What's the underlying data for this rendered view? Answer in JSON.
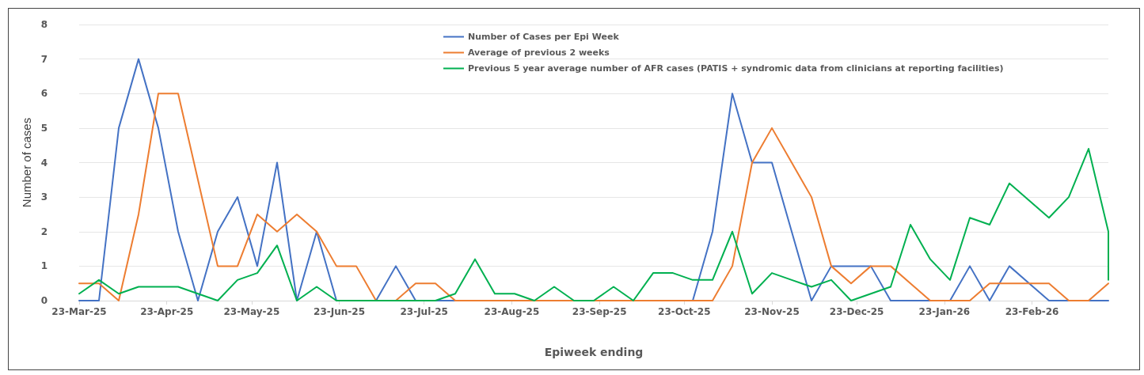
{
  "chart_data": {
    "type": "line",
    "xlabel": "Epiweek ending",
    "ylabel": "Number of cases",
    "x": [
      "2025-03-23",
      "2025-03-30",
      "2025-04-06",
      "2025-04-13",
      "2025-04-20",
      "2025-04-27",
      "2025-05-04",
      "2025-05-11",
      "2025-05-18",
      "2025-05-25",
      "2025-06-01",
      "2025-06-08",
      "2025-06-15",
      "2025-06-22",
      "2025-06-29",
      "2025-07-06",
      "2025-07-13",
      "2025-07-20",
      "2025-07-27",
      "2025-08-03",
      "2025-08-10",
      "2025-08-17",
      "2025-08-24",
      "2025-08-31",
      "2025-09-07",
      "2025-09-14",
      "2025-09-21",
      "2025-09-28",
      "2025-10-05",
      "2025-10-12",
      "2025-10-19",
      "2025-10-26",
      "2025-11-02",
      "2025-11-09",
      "2025-11-16",
      "2025-11-23",
      "2025-11-30",
      "2025-12-07",
      "2025-12-14",
      "2025-12-21",
      "2025-12-28",
      "2026-01-04",
      "2026-01-11",
      "2026-01-18",
      "2026-01-25",
      "2026-02-01",
      "2026-02-08",
      "2026-02-15",
      "2026-02-22",
      "2026-03-01",
      "2026-03-08",
      "2026-03-15",
      "2026-03-22"
    ],
    "series": [
      {
        "name": "Number of Cases per Epi Week",
        "color": "#4472c4",
        "values": [
          0,
          0,
          5,
          7,
          5,
          2,
          0,
          2,
          3,
          1,
          4,
          0,
          2,
          0,
          0,
          0,
          1,
          0,
          0,
          0,
          0,
          0,
          0,
          0,
          0,
          0,
          0,
          0,
          0,
          0,
          0,
          0,
          2,
          6,
          4,
          4,
          2,
          0,
          1,
          1,
          1,
          0,
          0,
          0,
          0,
          1,
          0,
          1,
          0.5,
          0,
          0,
          0,
          0
        ]
      },
      {
        "name": "Average of previous 2 weeks",
        "color": "#ed7d31",
        "values": [
          0.5,
          0.5,
          0,
          2.5,
          6,
          6,
          3.5,
          1,
          1,
          2.5,
          2,
          2.5,
          2,
          1,
          1,
          0,
          0,
          0.5,
          0.5,
          0,
          0,
          0,
          0,
          0,
          0,
          0,
          0,
          0,
          0,
          0,
          0,
          0,
          0,
          1,
          4,
          5,
          4,
          3,
          1,
          0.5,
          1,
          1,
          0.5,
          0,
          0,
          0,
          0.5,
          0.5,
          0.5,
          0.5,
          0,
          0,
          0.5
        ]
      },
      {
        "name": "Previous 5 year average number of AFR cases (PATIS + syndromic data from clinicians at reporting facilities)",
        "color": "#00b050",
        "x": [
          "2025-03-23",
          "2025-03-30",
          "2025-04-06",
          "2025-04-13",
          "2025-04-20",
          "2025-04-27",
          "2025-05-04",
          "2025-05-11",
          "2025-05-18",
          "2025-05-25",
          "2025-06-01",
          "2025-06-08",
          "2025-06-15",
          "2025-06-22",
          "2025-06-29",
          "2025-07-06",
          "2025-07-13",
          "2025-07-20",
          "2025-07-27",
          "2025-08-03",
          "2025-08-10",
          "2025-08-17",
          "2025-08-24",
          "2025-08-31",
          "2025-09-07",
          "2025-09-14",
          "2025-09-21",
          "2025-09-28",
          "2025-10-05",
          "2025-10-12",
          "2025-10-19",
          "2025-10-26",
          "2025-11-02",
          "2025-11-09",
          "2025-11-16",
          "2025-11-23",
          "2025-11-30",
          "2025-12-07",
          "2025-12-14",
          "2025-12-21",
          "2025-12-28",
          "2026-01-04",
          "2026-01-11",
          "2026-01-18",
          "2026-01-25",
          "2026-02-01",
          "2026-02-08",
          "2026-02-15",
          "2026-02-22",
          "2026-03-01",
          "2026-03-08",
          "2026-03-15",
          "2026-03-22",
          "2026-03-22"
        ],
        "values": [
          0.2,
          0.6,
          0.2,
          0.4,
          0.4,
          0.4,
          0.2,
          0,
          0.6,
          0.8,
          1.6,
          0,
          0.4,
          0,
          0,
          0,
          0,
          0,
          0,
          0.2,
          1.2,
          0.2,
          0.2,
          0,
          0.4,
          0,
          0,
          0.4,
          0,
          0.8,
          0.8,
          0.6,
          0.6,
          2,
          0.2,
          0.8,
          0.6,
          0.4,
          0.6,
          0,
          0.2,
          0.4,
          2.2,
          1.2,
          0.6,
          2.4,
          2.2,
          3.4,
          2.9,
          2.4,
          3,
          4.4,
          2,
          0.6
        ]
      }
    ],
    "xlim": [
      "2025-03-23",
      "2026-03-22"
    ],
    "xticks": [
      {
        "value": "2025-03-23",
        "label": "23-Mar-25"
      },
      {
        "value": "2025-04-23",
        "label": "23-Apr-25"
      },
      {
        "value": "2025-05-23",
        "label": "23-May-25"
      },
      {
        "value": "2025-06-23",
        "label": "23-Jun-25"
      },
      {
        "value": "2025-07-23",
        "label": "23-Jul-25"
      },
      {
        "value": "2025-08-23",
        "label": "23-Aug-25"
      },
      {
        "value": "2025-09-23",
        "label": "23-Sep-25"
      },
      {
        "value": "2025-10-23",
        "label": "23-Oct-25"
      },
      {
        "value": "2025-11-23",
        "label": "23-Nov-25"
      },
      {
        "value": "2025-12-23",
        "label": "23-Dec-25"
      },
      {
        "value": "2026-01-23",
        "label": "23-Jan-26"
      },
      {
        "value": "2026-02-23",
        "label": "23-Feb-26"
      }
    ],
    "ylim": [
      0,
      8
    ],
    "yticks": [
      0,
      1,
      2,
      3,
      4,
      5,
      6,
      7,
      8
    ],
    "grid": "y",
    "legend": "top",
    "marker": "none",
    "line_style": "solid"
  }
}
